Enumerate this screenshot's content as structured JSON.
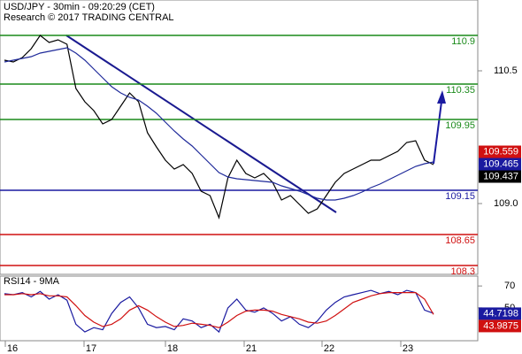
{
  "chart_data": {
    "type": "line",
    "title": "USD/JPY - 30min - 09:20:29 (CET)",
    "subtitle": "Research © 2017 TRADING CENTRAL",
    "x_labels": [
      "16",
      "17",
      "18",
      "21",
      "22",
      "23"
    ],
    "ylim": [
      108.2,
      111.3
    ],
    "yticks": [
      {
        "value": 109,
        "label": "109.0"
      },
      110.5
    ],
    "series": [
      {
        "name": "USD/JPY",
        "color": "#000000",
        "values": [
          110.62,
          110.6,
          110.65,
          110.75,
          110.9,
          110.82,
          110.85,
          110.8,
          110.3,
          110.15,
          110.05,
          109.9,
          109.95,
          110.1,
          110.25,
          110.15,
          109.8,
          109.64,
          109.49,
          109.39,
          109.44,
          109.34,
          109.14,
          109.09,
          108.84,
          109.29,
          109.49,
          109.34,
          109.29,
          109.34,
          109.24,
          109.04,
          109.09,
          108.99,
          108.89,
          108.94,
          109.09,
          109.24,
          109.34,
          109.39,
          109.44,
          109.49,
          109.49,
          109.54,
          109.59,
          109.69,
          109.71,
          109.49,
          109.44
        ]
      },
      {
        "name": "MA",
        "color": "#1f2a9a",
        "values": [
          110.6,
          110.62,
          110.64,
          110.66,
          110.7,
          110.72,
          110.74,
          110.76,
          110.7,
          110.62,
          110.52,
          110.42,
          110.32,
          110.25,
          110.2,
          110.17,
          110.1,
          110.02,
          109.92,
          109.82,
          109.73,
          109.65,
          109.55,
          109.45,
          109.35,
          109.3,
          109.28,
          109.27,
          109.26,
          109.25,
          109.24,
          109.2,
          109.17,
          109.14,
          109.1,
          109.06,
          109.04,
          109.04,
          109.06,
          109.09,
          109.13,
          109.18,
          109.22,
          109.27,
          109.32,
          109.37,
          109.42,
          109.45,
          109.47
        ]
      }
    ],
    "levels": [
      110.9,
      110.35,
      109.95,
      109.15,
      108.65,
      108.3
    ],
    "level_colors": [
      "#1a8a1a",
      "#1a8a1a",
      "#1a8a1a",
      "#1a1aa0",
      "#d01010",
      "#d01010"
    ],
    "price_labels": [
      109.559,
      109.465,
      109.437
    ],
    "price_label_colors": [
      "#d01010",
      "#1a1aa0",
      "#000000"
    ],
    "rsi": {
      "title": "RSI14 - 9MA",
      "ylim": [
        20,
        79
      ],
      "yticks": [
        70,
        50
      ],
      "series": [
        {
          "name": "RSI14",
          "color": "#1a1aa0",
          "values": [
            63,
            62,
            64,
            60,
            65,
            58,
            62,
            57,
            35,
            28,
            32,
            30,
            45,
            55,
            60,
            50,
            35,
            32,
            33,
            30,
            40,
            38,
            32,
            35,
            28,
            50,
            58,
            48,
            46,
            50,
            45,
            38,
            42,
            35,
            32,
            38,
            48,
            55,
            60,
            62,
            64,
            66,
            63,
            65,
            62,
            66,
            64,
            48,
            45
          ]
        },
        {
          "name": "9MA",
          "color": "#d01010",
          "values": [
            62,
            62,
            63,
            62,
            63,
            61,
            61,
            60,
            52,
            43,
            37,
            33,
            35,
            40,
            48,
            52,
            48,
            42,
            37,
            33,
            34,
            36,
            35,
            34,
            32,
            37,
            43,
            47,
            48,
            48,
            47,
            44,
            42,
            40,
            37,
            36,
            38,
            43,
            49,
            55,
            58,
            61,
            63,
            64,
            64,
            64,
            64,
            58,
            44
          ]
        }
      ],
      "value_labels": [
        44.7198,
        43.9875
      ],
      "value_label_colors": [
        "#1a1aa0",
        "#d01010"
      ]
    }
  }
}
